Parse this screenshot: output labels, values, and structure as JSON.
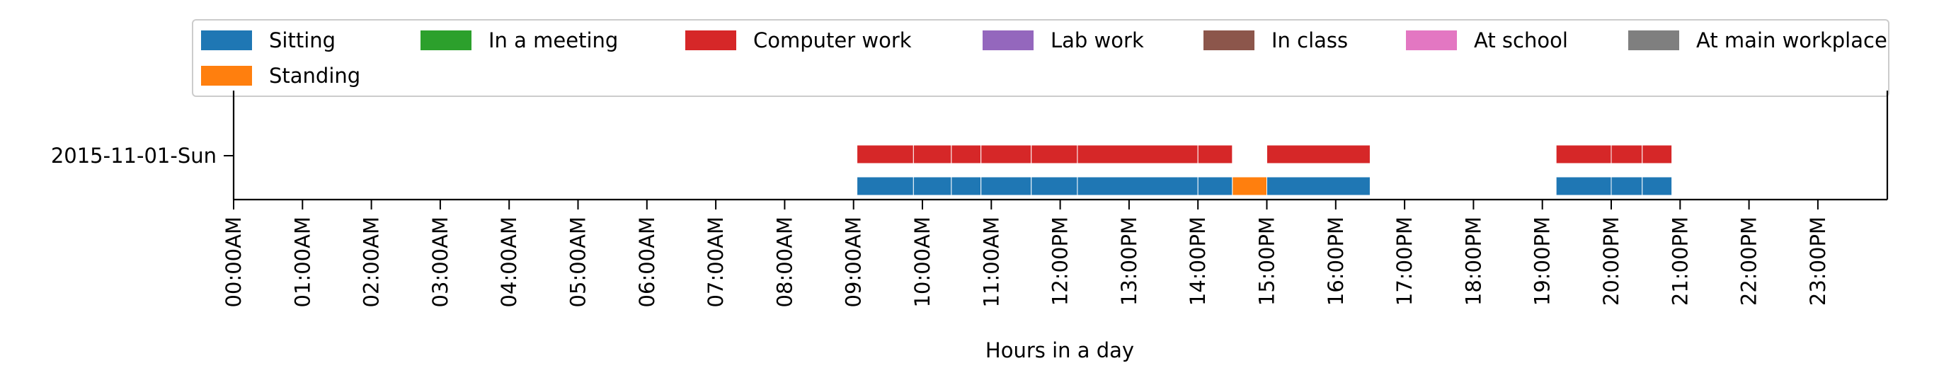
{
  "chart_data": {
    "type": "timeline",
    "xlabel": "Hours in a day",
    "x_range_hours": [
      0,
      24
    ],
    "x_ticks": [
      "00:00AM",
      "01:00AM",
      "02:00AM",
      "03:00AM",
      "04:00AM",
      "05:00AM",
      "06:00AM",
      "07:00AM",
      "08:00AM",
      "09:00AM",
      "10:00AM",
      "11:00AM",
      "12:00PM",
      "13:00PM",
      "14:00PM",
      "15:00PM",
      "16:00PM",
      "17:00PM",
      "18:00PM",
      "19:00PM",
      "20:00PM",
      "21:00PM",
      "22:00PM",
      "23:00PM"
    ],
    "y_categories": [
      "2015-11-01-Sun"
    ],
    "legend_placement": "top",
    "legend": [
      {
        "name": "Sitting",
        "color": "#1f77b4"
      },
      {
        "name": "In a meeting",
        "color": "#2ca02c"
      },
      {
        "name": "Computer work",
        "color": "#d62728"
      },
      {
        "name": "Lab work",
        "color": "#9467bd"
      },
      {
        "name": "In class",
        "color": "#8c564b"
      },
      {
        "name": "At school",
        "color": "#e377c2"
      },
      {
        "name": "At main workplace",
        "color": "#7f7f7f"
      },
      {
        "name": "Standing",
        "color": "#ff7f0e"
      }
    ],
    "series": [
      {
        "name": "Computer work",
        "day": "2015-11-01-Sun",
        "lane": 1,
        "color": "#d62728",
        "intervals": [
          [
            9.05,
            9.87
          ],
          [
            9.87,
            10.42
          ],
          [
            10.42,
            10.85
          ],
          [
            10.85,
            11.58
          ],
          [
            11.58,
            12.25
          ],
          [
            12.25,
            14.0
          ],
          [
            14.0,
            14.5
          ],
          [
            15.0,
            16.5
          ],
          [
            19.2,
            20.0
          ],
          [
            20.0,
            20.45
          ],
          [
            20.45,
            20.88
          ]
        ]
      },
      {
        "name": "Sitting",
        "day": "2015-11-01-Sun",
        "lane": 0,
        "color": "#1f77b4",
        "intervals": [
          [
            9.05,
            9.87
          ],
          [
            9.87,
            10.42
          ],
          [
            10.42,
            10.85
          ],
          [
            10.85,
            11.58
          ],
          [
            11.58,
            12.25
          ],
          [
            12.25,
            14.0
          ],
          [
            14.0,
            14.5
          ],
          [
            15.0,
            16.5
          ],
          [
            19.2,
            20.0
          ],
          [
            20.0,
            20.45
          ],
          [
            20.45,
            20.88
          ]
        ]
      },
      {
        "name": "Standing",
        "day": "2015-11-01-Sun",
        "lane": 0,
        "color": "#ff7f0e",
        "intervals": [
          [
            14.5,
            15.0
          ]
        ]
      }
    ]
  }
}
